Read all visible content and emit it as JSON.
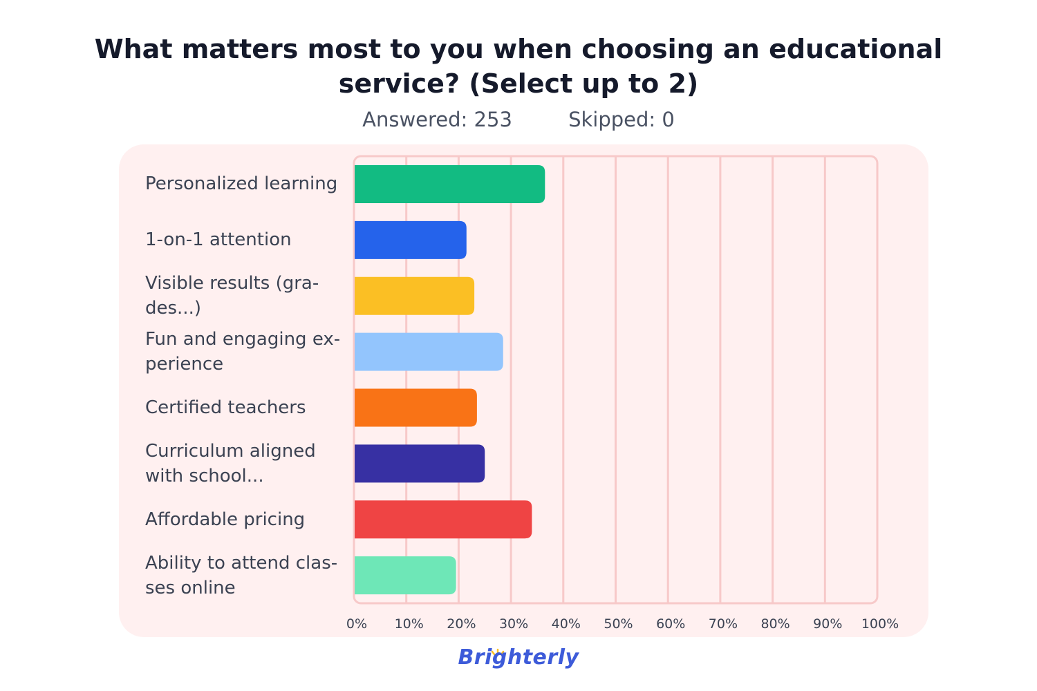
{
  "header": {
    "title_line1": "What matters most to you when choosing an educational",
    "title_line2": "service? (Select up to 2)",
    "answered": "Answered: 253",
    "skipped": "Skipped: 0"
  },
  "brand": {
    "logo_text": "Brighterly"
  },
  "colors": {
    "panel_bg": "#fff0f0",
    "grid": "#f7c9c9",
    "axis_text": "#3b4252",
    "logo": "#3d5bd9"
  },
  "chart_data": {
    "type": "bar",
    "orientation": "horizontal",
    "title": "What matters most to you when choosing an educational service? (Select up to 2)",
    "categories": [
      "Personalized learning",
      "1-on-1 attention",
      "Visible results (gra-des...)",
      "Fun and engaging ex-perience",
      "Certified teachers",
      "Curriculum aligned with school...",
      "Affordable pricing",
      "Ability to attend clas-ses online"
    ],
    "category_lines": [
      [
        "Personalized learning"
      ],
      [
        "1-on-1 attention"
      ],
      [
        "Visible results (gra-",
        "des...)"
      ],
      [
        "Fun and engaging ex-",
        "perience"
      ],
      [
        "Certified teachers"
      ],
      [
        "Curriculum aligned",
        "with school..."
      ],
      [
        "Affordable pricing"
      ],
      [
        "Ability to attend clas-",
        "ses online"
      ]
    ],
    "values": [
      36.5,
      21.5,
      23,
      28.5,
      23.5,
      25,
      34,
      19.5
    ],
    "bar_colors": [
      "#12bb82",
      "#2563eb",
      "#fbbf24",
      "#93c5fd",
      "#f97316",
      "#3730a3",
      "#ef4444",
      "#6ee7b7"
    ],
    "xlim": [
      0,
      100
    ],
    "x_ticks": [
      "0%",
      "10%",
      "20%",
      "30%",
      "40%",
      "50%",
      "60%",
      "70%",
      "80%",
      "90%",
      "100%"
    ],
    "grid": true,
    "legend": "none"
  }
}
